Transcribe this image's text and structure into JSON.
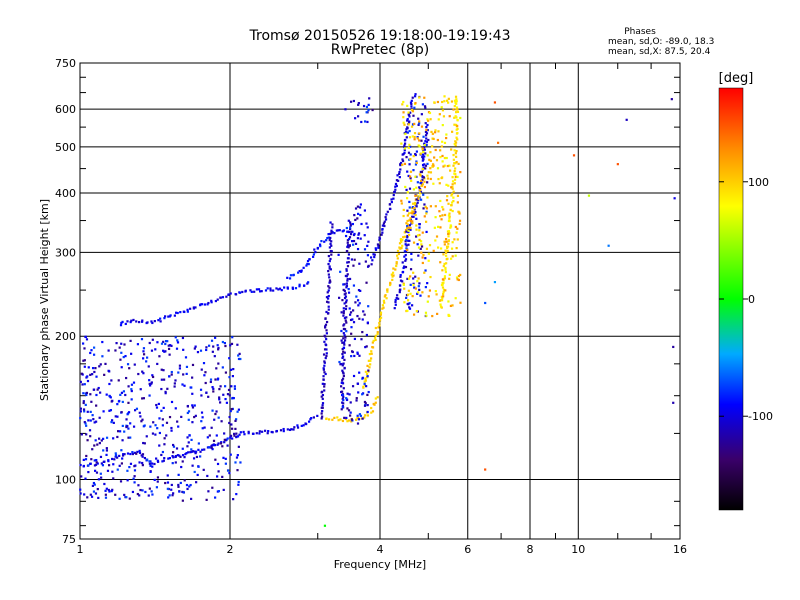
{
  "chart_data": {
    "type": "scatter",
    "title": "Tromsø 20150526 19:18:00-19:19:43",
    "subtitle": "RwPretec (8p)",
    "xlabel": "Frequency [MHz]",
    "ylabel": "Stationary phase Virtual Height [km]",
    "x_scale": "log",
    "y_scale": "log",
    "xlim": [
      1,
      16
    ],
    "ylim": [
      75,
      750
    ],
    "x_ticks": [
      1,
      2,
      4,
      6,
      8,
      10,
      16
    ],
    "x_tick_labels": [
      "1",
      "2",
      "4",
      "6",
      "8",
      "10",
      "16"
    ],
    "y_ticks": [
      75,
      100,
      200,
      300,
      400,
      500,
      600,
      750
    ],
    "y_tick_labels": [
      "75",
      "100",
      "200",
      "300",
      "400",
      "500",
      "600",
      "750"
    ],
    "grid": true,
    "legend": {
      "title": "Phases",
      "entries": [
        "mean, sd,O: -89.0, 18.3",
        "mean, sd,X: 87.5, 20.4"
      ]
    },
    "colorbar": {
      "label": "[deg]",
      "range": [
        -180,
        180
      ],
      "ticks": [
        100,
        0,
        -100
      ],
      "tick_labels": [
        "100",
        "0",
        "-100"
      ]
    },
    "traces": [
      {
        "phase": -100,
        "points": [
          [
            1.0,
            107
          ],
          [
            1.1,
            108
          ],
          [
            1.2,
            112
          ],
          [
            1.3,
            114
          ],
          [
            1.4,
            108
          ],
          [
            1.5,
            111
          ],
          [
            1.7,
            114
          ],
          [
            1.9,
            119
          ],
          [
            2.1,
            125
          ],
          [
            2.4,
            126
          ],
          [
            2.7,
            128
          ],
          [
            2.9,
            133
          ],
          [
            3.0,
            137
          ]
        ]
      },
      {
        "phase": -95,
        "points": [
          [
            1.2,
            212
          ],
          [
            1.3,
            216
          ],
          [
            1.4,
            213
          ],
          [
            1.5,
            220
          ],
          [
            1.7,
            230
          ],
          [
            1.9,
            240
          ],
          [
            2.1,
            248
          ],
          [
            2.3,
            250
          ],
          [
            2.6,
            252
          ],
          [
            2.8,
            256
          ],
          [
            2.9,
            262
          ]
        ]
      },
      {
        "phase": -90,
        "points": [
          [
            2.6,
            265
          ],
          [
            2.8,
            275
          ],
          [
            2.95,
            300
          ],
          [
            3.1,
            320
          ],
          [
            3.3,
            335
          ],
          [
            3.5,
            330
          ],
          [
            3.7,
            320
          ]
        ]
      },
      {
        "phase": -110,
        "points": [
          [
            3.05,
            135
          ],
          [
            3.1,
            170
          ],
          [
            3.12,
            210
          ],
          [
            3.15,
            250
          ],
          [
            3.18,
            300
          ],
          [
            3.2,
            350
          ]
        ]
      },
      {
        "phase": -110,
        "points": [
          [
            3.35,
            140
          ],
          [
            3.38,
            180
          ],
          [
            3.4,
            220
          ],
          [
            3.42,
            260
          ],
          [
            3.45,
            300
          ],
          [
            3.5,
            350
          ]
        ]
      },
      {
        "phase": -105,
        "points": [
          [
            3.8,
            280
          ],
          [
            4.0,
            320
          ],
          [
            4.2,
            380
          ],
          [
            4.4,
            450
          ],
          [
            4.5,
            520
          ],
          [
            4.6,
            600
          ],
          [
            4.7,
            650
          ]
        ]
      },
      {
        "phase": -100,
        "points": [
          [
            4.3,
            230
          ],
          [
            4.4,
            260
          ],
          [
            4.5,
            300
          ],
          [
            4.6,
            340
          ],
          [
            4.8,
            400
          ],
          [
            4.9,
            480
          ],
          [
            5.0,
            560
          ]
        ]
      },
      {
        "phase": 100,
        "points": [
          [
            3.1,
            135
          ],
          [
            3.3,
            134
          ],
          [
            3.5,
            133
          ],
          [
            3.7,
            135
          ],
          [
            3.85,
            140
          ],
          [
            3.95,
            150
          ]
        ]
      },
      {
        "phase": 100,
        "points": [
          [
            3.7,
            155
          ],
          [
            3.8,
            175
          ],
          [
            3.9,
            195
          ],
          [
            4.0,
            220
          ],
          [
            4.2,
            260
          ],
          [
            4.4,
            310
          ],
          [
            4.6,
            360
          ],
          [
            4.8,
            400
          ],
          [
            5.0,
            440
          ],
          [
            5.2,
            470
          ]
        ]
      },
      {
        "phase": 90,
        "points": [
          [
            5.3,
            230
          ],
          [
            5.4,
            280
          ],
          [
            5.5,
            330
          ],
          [
            5.6,
            400
          ],
          [
            5.65,
            480
          ],
          [
            5.7,
            560
          ],
          [
            5.7,
            640
          ]
        ]
      }
    ],
    "scatter_clouds": [
      {
        "phase": -100,
        "x": [
          3.3,
          3.8
        ],
        "y": [
          130,
          380
        ]
      },
      {
        "phase": -100,
        "x": [
          3.4,
          3.9
        ],
        "y": [
          560,
          640
        ]
      },
      {
        "phase": -100,
        "x": [
          4.5,
          5.0
        ],
        "y": [
          220,
          640
        ]
      },
      {
        "phase": 100,
        "x": [
          4.4,
          5.8
        ],
        "y": [
          220,
          640
        ]
      },
      {
        "phase": -100,
        "x": [
          1.0,
          2.1
        ],
        "y": [
          90,
          200
        ]
      }
    ],
    "sparse_points": [
      [
        6.5,
        105,
        150
      ],
      [
        6.8,
        620,
        150
      ],
      [
        6.9,
        510,
        140
      ],
      [
        9.8,
        480,
        150
      ],
      [
        12.0,
        460,
        150
      ],
      [
        12.5,
        570,
        -110
      ],
      [
        15.4,
        630,
        -120
      ],
      [
        15.6,
        390,
        -100
      ],
      [
        15.5,
        190,
        -120
      ],
      [
        15.5,
        145,
        -115
      ],
      [
        10.5,
        395,
        60
      ],
      [
        11.5,
        310,
        -60
      ],
      [
        6.5,
        235,
        -70
      ],
      [
        6.8,
        260,
        -50
      ],
      [
        3.1,
        80,
        0
      ]
    ]
  }
}
